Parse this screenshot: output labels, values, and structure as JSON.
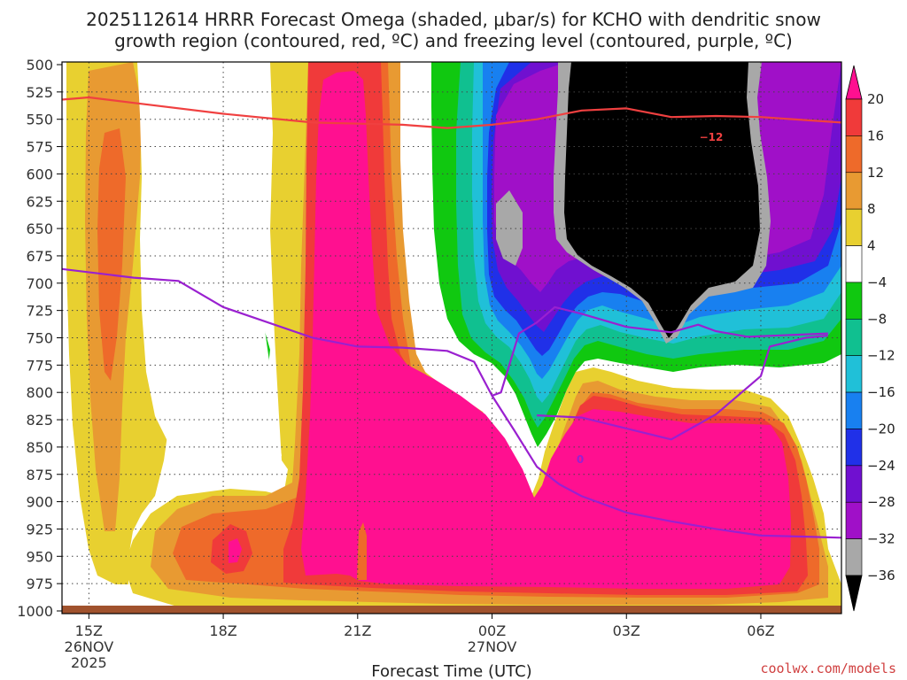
{
  "chart_data": {
    "type": "time-height cross section (filled contour)",
    "title_line1": "2025112614 HRRR Forecast Omega (shaded, μbar/s) for KCHO with dendritic snow",
    "title_line2": "growth region (contoured, red, ºC) and freezing level (contoured, purple, ºC)",
    "xlabel": "Forecast Time (UTC)",
    "credit": "coolwx.com/models",
    "pressure_levels": [
      "500",
      "525",
      "550",
      "575",
      "600",
      "625",
      "650",
      "675",
      "700",
      "725",
      "750",
      "775",
      "800",
      "825",
      "850",
      "875",
      "900",
      "925",
      "950",
      "975",
      "1000"
    ],
    "ylim_hPa": [
      1000,
      500
    ],
    "time_ticks": [
      {
        "label": "15Z",
        "hour": 15,
        "line2": "26NOV",
        "line3": "2025"
      },
      {
        "label": "18Z",
        "hour": 18
      },
      {
        "label": "21Z",
        "hour": 21
      },
      {
        "label": "00Z",
        "hour": 24,
        "line2": "27NOV"
      },
      {
        "label": "03Z",
        "hour": 27
      },
      {
        "label": "06Z",
        "hour": 30
      }
    ],
    "xlim_hours": [
      14.4,
      31.8
    ],
    "colorbar": {
      "units": "μbar/s",
      "labels": [
        "20",
        "16",
        "12",
        "8",
        "4",
        "−4",
        "−8",
        "−12",
        "−16",
        "−20",
        "−24",
        "−28",
        "−32",
        "−36"
      ],
      "bins": [
        {
          "range": "> 20",
          "color": "#ff1090"
        },
        {
          "range": "16 to 20",
          "color": "#f03a3a"
        },
        {
          "range": "12 to 16",
          "color": "#ee6a2a"
        },
        {
          "range": "8 to 12",
          "color": "#e89a32"
        },
        {
          "range": "4 to 8",
          "color": "#e8d030"
        },
        {
          "range": "-4 to 4",
          "color": "#ffffff"
        },
        {
          "range": "-8 to -4",
          "color": "#10c810"
        },
        {
          "range": "-12 to -8",
          "color": "#10c090"
        },
        {
          "range": "-16 to -12",
          "color": "#20c0d8"
        },
        {
          "range": "-20 to -16",
          "color": "#1880f0"
        },
        {
          "range": "-24 to -20",
          "color": "#2030e8"
        },
        {
          "range": "-28 to -24",
          "color": "#7010d0"
        },
        {
          "range": "-32 to -28",
          "color": "#a010c8"
        },
        {
          "range": "-36 to -32",
          "color": "#a8a8a8"
        },
        {
          "range": "< -36",
          "color": "#000000"
        }
      ]
    },
    "contours": [
      {
        "name": "dendritic growth region",
        "value": "−12",
        "units": "ºC",
        "color": "#f04040",
        "points": [
          [
            14.4,
            532
          ],
          [
            15,
            530
          ],
          [
            16,
            535
          ],
          [
            18,
            545
          ],
          [
            20,
            553
          ],
          [
            22,
            555
          ],
          [
            23,
            558
          ],
          [
            24,
            555
          ],
          [
            25,
            550
          ],
          [
            26,
            542
          ],
          [
            27,
            540
          ],
          [
            28,
            548
          ],
          [
            29,
            547
          ],
          [
            30,
            548
          ],
          [
            31.8,
            553
          ]
        ]
      },
      {
        "name": "freezing level",
        "value": "0",
        "units": "ºC",
        "color": "#9a20d0",
        "points": [
          [
            14.4,
            687
          ],
          [
            16,
            695
          ],
          [
            17,
            698
          ],
          [
            18,
            722
          ],
          [
            20,
            750
          ],
          [
            21,
            758
          ],
          [
            22,
            759
          ],
          [
            23,
            762
          ],
          [
            23.6,
            772
          ],
          [
            24,
            803
          ],
          [
            24.2,
            800
          ],
          [
            24.4,
            773
          ],
          [
            24.6,
            746
          ],
          [
            25,
            736
          ],
          [
            25.4,
            722
          ],
          [
            26,
            728
          ],
          [
            27,
            740
          ],
          [
            28,
            745
          ],
          [
            28.6,
            738
          ],
          [
            29,
            744
          ],
          [
            29.7,
            749
          ],
          [
            31.5,
            746
          ]
        ]
      },
      {
        "name": "freezing level lower branch",
        "value": "0",
        "units": "ºC",
        "color": "#9a20d0",
        "points": [
          [
            25,
            821
          ],
          [
            26,
            823
          ],
          [
            27,
            833
          ],
          [
            28,
            843
          ],
          [
            29,
            820
          ],
          [
            30,
            785
          ],
          [
            30.2,
            758
          ],
          [
            31,
            750
          ],
          [
            31.5,
            748
          ]
        ]
      },
      {
        "name": "freezing level near surface",
        "value": "0",
        "units": "ºC",
        "color": "#9a20d0",
        "points": [
          [
            24,
            803
          ],
          [
            24.5,
            835
          ],
          [
            25,
            868
          ],
          [
            25.5,
            884
          ],
          [
            26,
            895
          ],
          [
            27,
            910
          ],
          [
            28,
            918
          ],
          [
            29,
            925
          ],
          [
            30,
            931
          ],
          [
            31,
            932
          ],
          [
            31.8,
            933
          ]
        ]
      }
    ],
    "surface_color": "#a0522d"
  }
}
